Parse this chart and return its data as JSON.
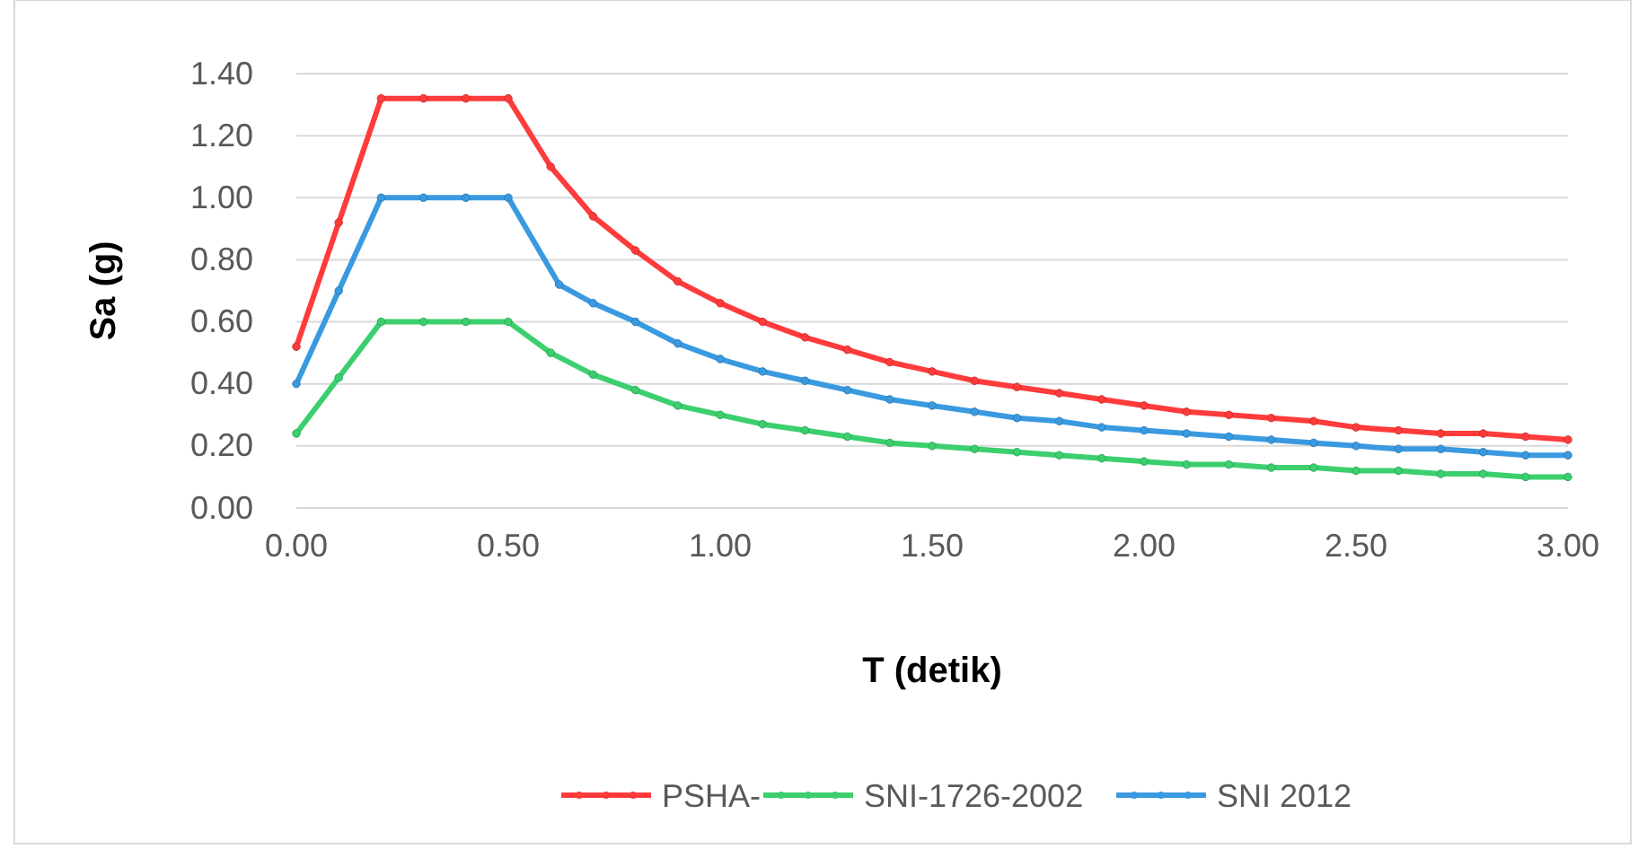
{
  "chart_data": {
    "type": "line",
    "xlabel": "T (detik)",
    "ylabel": "Sa (g)",
    "xlim": [
      0,
      3
    ],
    "xticks": [
      {
        "value": 0,
        "label": "0.00"
      },
      {
        "value": 0.5,
        "label": "0.50"
      },
      {
        "value": 1,
        "label": "1.00"
      },
      {
        "value": 1.5,
        "label": "1.50"
      },
      {
        "value": 2,
        "label": "2.00"
      },
      {
        "value": 2.5,
        "label": "2.50"
      },
      {
        "value": 3,
        "label": "3.00"
      }
    ],
    "ylim": [
      0,
      1.4
    ],
    "yticks": [
      {
        "value": 0,
        "label": "0.00"
      },
      {
        "value": 0.2,
        "label": "0.20"
      },
      {
        "value": 0.4,
        "label": "0.40"
      },
      {
        "value": 0.6,
        "label": "0.60"
      },
      {
        "value": 0.8,
        "label": "0.80"
      },
      {
        "value": 1,
        "label": "1.00"
      },
      {
        "value": 1.2,
        "label": "1.20"
      },
      {
        "value": 1.4,
        "label": "1.40"
      }
    ],
    "grid": "y",
    "legend": "bottom",
    "marker": "circle",
    "line_style": "solid",
    "series": [
      {
        "name": "PSHA-",
        "color": "#ff3b3b",
        "x": [
          0,
          0.1,
          0.2,
          0.3,
          0.4,
          0.5,
          0.6,
          0.7,
          0.8,
          0.9,
          1,
          1.1,
          1.2,
          1.3,
          1.4,
          1.5,
          1.6,
          1.7,
          1.8,
          1.9,
          2,
          2.1,
          2.2,
          2.3,
          2.4,
          2.5,
          2.6,
          2.7,
          2.8,
          2.9,
          3
        ],
        "values": [
          0.52,
          0.92,
          1.32,
          1.32,
          1.32,
          1.32,
          1.1,
          0.94,
          0.83,
          0.73,
          0.66,
          0.6,
          0.55,
          0.51,
          0.47,
          0.44,
          0.41,
          0.39,
          0.37,
          0.35,
          0.33,
          0.31,
          0.3,
          0.29,
          0.28,
          0.26,
          0.25,
          0.24,
          0.24,
          0.23,
          0.22
        ]
      },
      {
        "name": "SNI-1726-2002",
        "color": "#3ccf6e",
        "x": [
          0,
          0.1,
          0.2,
          0.3,
          0.4,
          0.5,
          0.6,
          0.7,
          0.8,
          0.9,
          1,
          1.1,
          1.2,
          1.3,
          1.4,
          1.5,
          1.6,
          1.7,
          1.8,
          1.9,
          2,
          2.1,
          2.2,
          2.3,
          2.4,
          2.5,
          2.6,
          2.7,
          2.8,
          2.9,
          3
        ],
        "values": [
          0.24,
          0.42,
          0.6,
          0.6,
          0.6,
          0.6,
          0.5,
          0.43,
          0.38,
          0.33,
          0.3,
          0.27,
          0.25,
          0.23,
          0.21,
          0.2,
          0.19,
          0.18,
          0.17,
          0.16,
          0.15,
          0.14,
          0.14,
          0.13,
          0.13,
          0.12,
          0.12,
          0.11,
          0.11,
          0.1,
          0.1
        ]
      },
      {
        "name": "SNI 2012",
        "color": "#3a9ae0",
        "x": [
          0,
          0.1,
          0.2,
          0.3,
          0.4,
          0.5,
          0.62,
          0.7,
          0.8,
          0.9,
          1,
          1.1,
          1.2,
          1.3,
          1.4,
          1.5,
          1.6,
          1.7,
          1.8,
          1.9,
          2,
          2.1,
          2.2,
          2.3,
          2.4,
          2.5,
          2.6,
          2.7,
          2.8,
          2.9,
          3
        ],
        "values": [
          0.4,
          0.7,
          1,
          1,
          1,
          1,
          0.72,
          0.66,
          0.6,
          0.53,
          0.48,
          0.44,
          0.41,
          0.38,
          0.35,
          0.33,
          0.31,
          0.29,
          0.28,
          0.26,
          0.25,
          0.24,
          0.23,
          0.22,
          0.21,
          0.2,
          0.19,
          0.19,
          0.18,
          0.17,
          0.17
        ]
      }
    ]
  }
}
